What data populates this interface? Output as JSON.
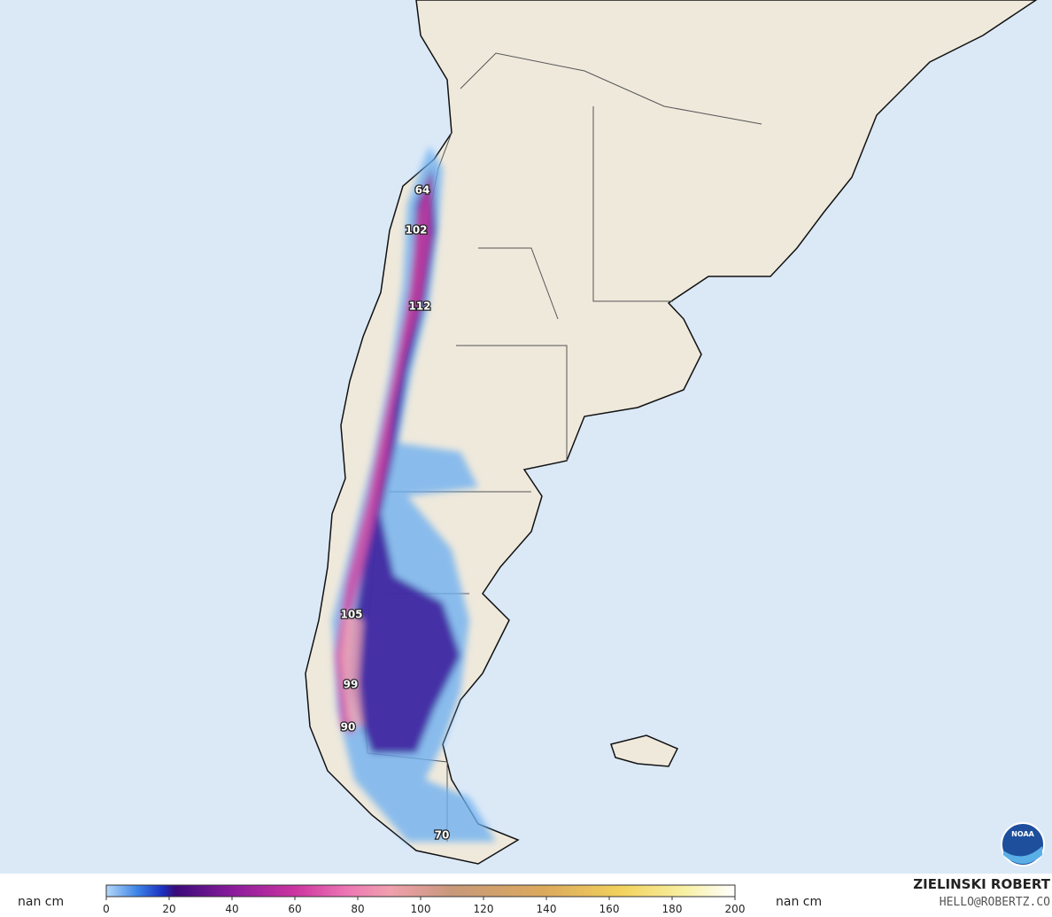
{
  "map": {
    "labels": [
      "64",
      "102",
      "112",
      "105",
      "99",
      "90",
      "70"
    ],
    "logo": "NOAA"
  },
  "colorbar": {
    "unit_left": "nan cm",
    "unit_right": "nan cm",
    "ticks": [
      0,
      20,
      40,
      60,
      80,
      100,
      120,
      140,
      160,
      180,
      200
    ]
  },
  "credit": {
    "name": "ZIELINSKI ROBERT",
    "email": "HELLO@ROBERTZ.CO"
  }
}
